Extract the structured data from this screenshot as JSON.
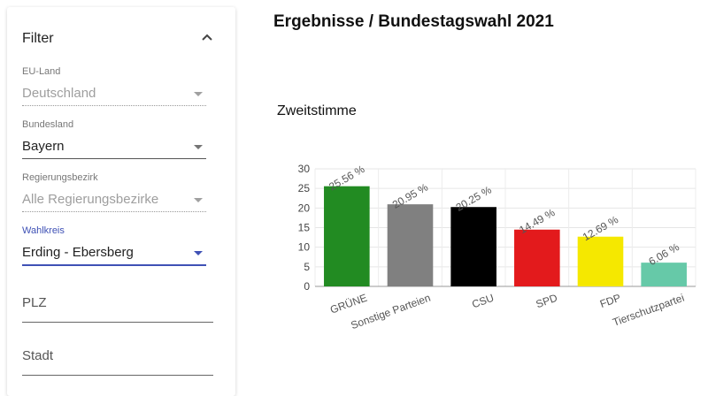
{
  "filter": {
    "title": "Filter",
    "fields": [
      {
        "label": "EU-Land",
        "value": "Deutschland",
        "disabled": true
      },
      {
        "label": "Bundesland",
        "value": "Bayern",
        "disabled": false
      },
      {
        "label": "Regierungsbezirk",
        "value": "Alle Regierungsbezirke",
        "disabled": true
      },
      {
        "label": "Wahlkreis",
        "value": "Erding - Ebersberg",
        "disabled": false
      }
    ],
    "plz_placeholder": "PLZ",
    "stadt_placeholder": "Stadt"
  },
  "main": {
    "title": "Ergebnisse / Bundestagswahl 2021",
    "section_title": "Zweitstimme"
  },
  "chart_data": {
    "type": "bar",
    "categories": [
      "GRÜNE",
      "Sonstige Parteien",
      "CSU",
      "SPD",
      "FDP",
      "Tierschutzpartei"
    ],
    "values": [
      25.56,
      20.95,
      20.25,
      14.49,
      12.69,
      6.06
    ],
    "data_labels": [
      "25.56 %",
      "20.95 %",
      "20.25 %",
      "14.49 %",
      "12.69 %",
      "6.06 %"
    ],
    "colors": [
      "#228b22",
      "#808080",
      "#000000",
      "#e31a1c",
      "#f5e800",
      "#66c9a8"
    ],
    "yticks": [
      0,
      5,
      10,
      15,
      20,
      25,
      30
    ],
    "ylim": [
      0,
      30
    ],
    "grid": true,
    "title": "",
    "xlabel": "",
    "ylabel": ""
  }
}
